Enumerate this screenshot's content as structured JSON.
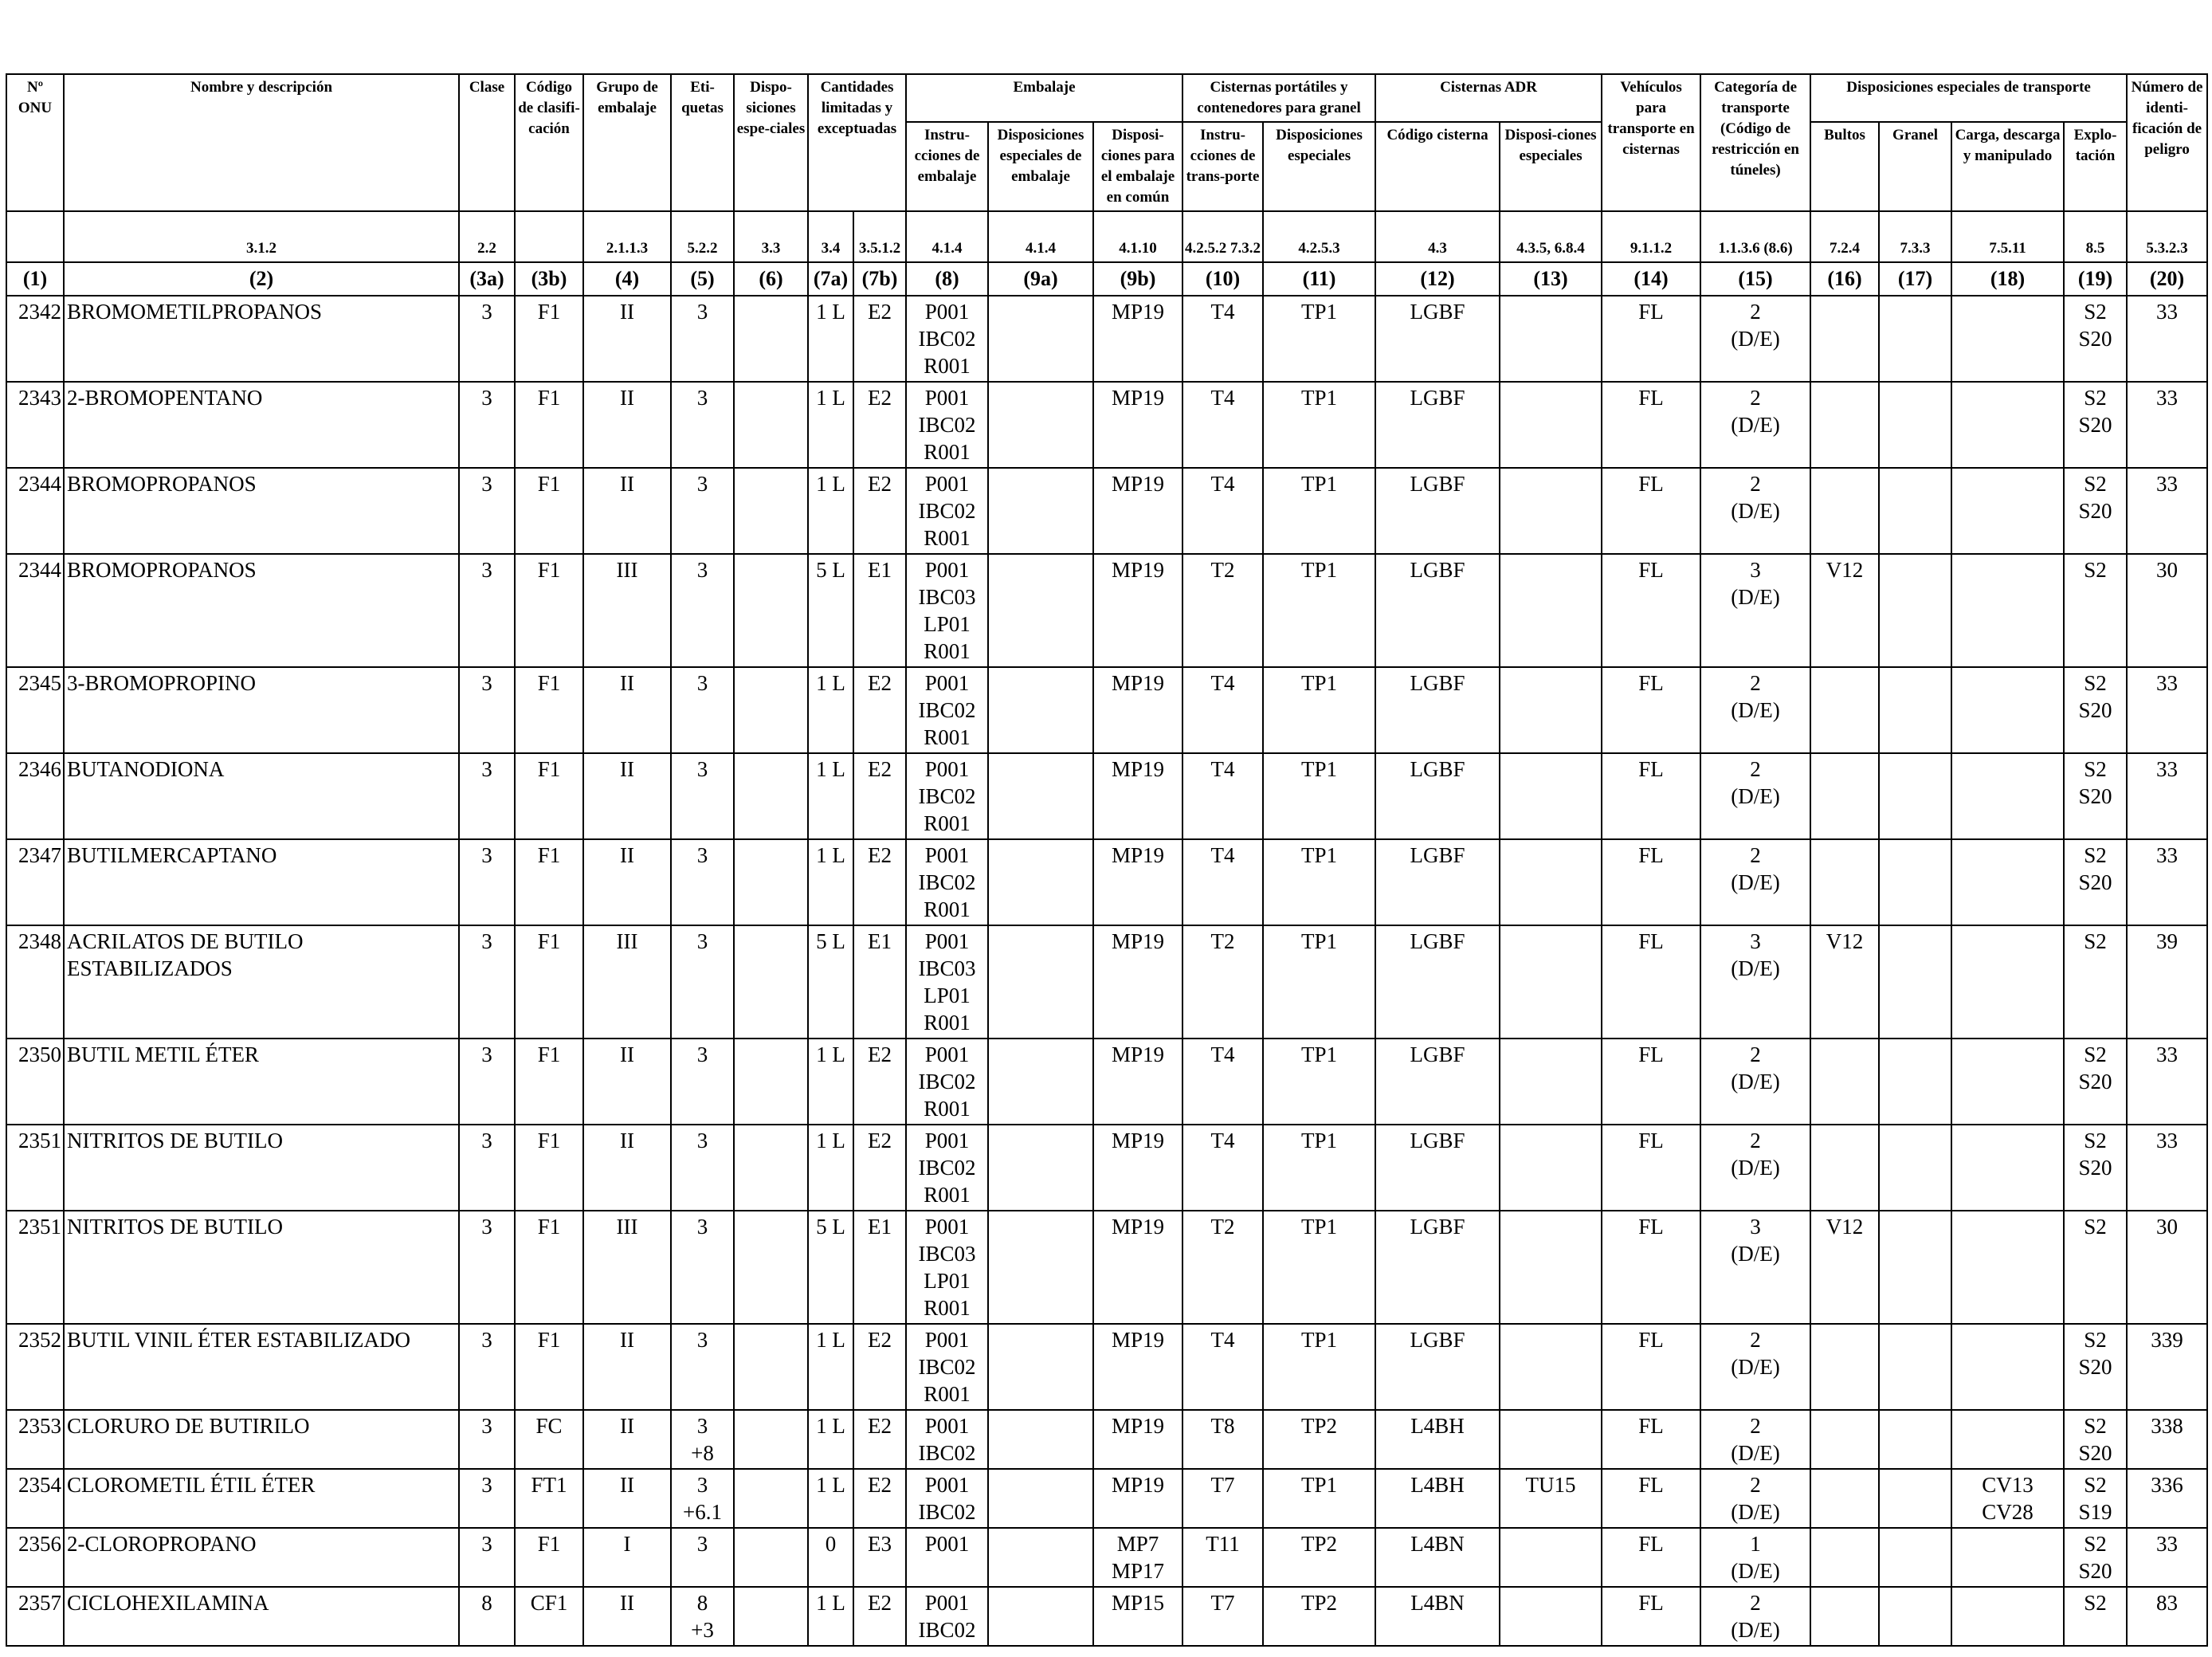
{
  "header": {
    "groups": {
      "cantidades": "Cantidades limitadas y exceptuadas",
      "embalaje": "Embalaje",
      "cisternas_portatiles": "Cisternas portátiles y contenedores para granel",
      "cisternas_adr": "Cisternas ADR",
      "disposiciones_transporte": "Disposiciones especiales de transporte"
    },
    "columns": [
      {
        "label": "Nº ONU",
        "ref": "",
        "num": "(1)"
      },
      {
        "label": "Nombre y descripción",
        "ref": "3.1.2",
        "num": "(2)"
      },
      {
        "label": "Clase",
        "ref": "2.2",
        "num": "(3a)"
      },
      {
        "label": "Código de clasifi-cación",
        "ref": "",
        "num": "(3b)"
      },
      {
        "label": "Grupo de embalaje",
        "ref": "2.1.1.3",
        "num": "(4)"
      },
      {
        "label": "Eti-quetas",
        "ref": "5.2.2",
        "num": "(5)"
      },
      {
        "label": "Dispo-siciones espe-ciales",
        "ref": "3.3",
        "num": "(6)"
      },
      {
        "label": "",
        "ref": "3.4",
        "num": "(7a)"
      },
      {
        "label": "",
        "ref": "3.5.1.2",
        "num": "(7b)"
      },
      {
        "label": "Instru-cciones de embalaje",
        "ref": "4.1.4",
        "num": "(8)"
      },
      {
        "label": "Disposiciones especiales de embalaje",
        "ref": "4.1.4",
        "num": "(9a)"
      },
      {
        "label": "Disposi-ciones para el embalaje en común",
        "ref": "4.1.10",
        "num": "(9b)"
      },
      {
        "label": "Instru-cciones de trans-porte",
        "ref": "4.2.5.2 7.3.2",
        "num": "(10)"
      },
      {
        "label": "Disposiciones especiales",
        "ref": "4.2.5.3",
        "num": "(11)"
      },
      {
        "label": "Código cisterna",
        "ref": "4.3",
        "num": "(12)"
      },
      {
        "label": "Disposi-ciones especiales",
        "ref": "4.3.5, 6.8.4",
        "num": "(13)"
      },
      {
        "label": "Vehículos para transporte en cisternas",
        "ref": "9.1.1.2",
        "num": "(14)"
      },
      {
        "label": "Categoría de transporte (Código de restricción en túneles)",
        "ref": "1.1.3.6 (8.6)",
        "num": "(15)"
      },
      {
        "label": "Bultos",
        "ref": "7.2.4",
        "num": "(16)"
      },
      {
        "label": "Granel",
        "ref": "7.3.3",
        "num": "(17)"
      },
      {
        "label": "Carga, descarga y manipulado",
        "ref": "7.5.11",
        "num": "(18)"
      },
      {
        "label": "Explo-tación",
        "ref": "8.5",
        "num": "(19)"
      },
      {
        "label": "Número de identi-ficación de peligro",
        "ref": "5.3.2.3",
        "num": "(20)"
      }
    ]
  },
  "rows": [
    {
      "c": [
        "2342",
        "BROMOMETILPROPANOS",
        "3",
        "F1",
        "II",
        "3",
        "",
        "1 L",
        "E2",
        "P001\nIBC02\nR001",
        "",
        "MP19",
        "T4",
        "TP1",
        "LGBF",
        "",
        "FL",
        "2\n(D/E)",
        "",
        "",
        "",
        "S2\nS20",
        "33"
      ]
    },
    {
      "c": [
        "2343",
        "2-BROMOPENTANO",
        "3",
        "F1",
        "II",
        "3",
        "",
        "1 L",
        "E2",
        "P001\nIBC02\nR001",
        "",
        "MP19",
        "T4",
        "TP1",
        "LGBF",
        "",
        "FL",
        "2\n(D/E)",
        "",
        "",
        "",
        "S2\nS20",
        "33"
      ]
    },
    {
      "c": [
        "2344",
        "BROMOPROPANOS",
        "3",
        "F1",
        "II",
        "3",
        "",
        "1 L",
        "E2",
        "P001\nIBC02\nR001",
        "",
        "MP19",
        "T4",
        "TP1",
        "LGBF",
        "",
        "FL",
        "2\n(D/E)",
        "",
        "",
        "",
        "S2\nS20",
        "33"
      ]
    },
    {
      "c": [
        "2344",
        "BROMOPROPANOS",
        "3",
        "F1",
        "III",
        "3",
        "",
        "5 L",
        "E1",
        "P001\nIBC03\nLP01\nR001",
        "",
        "MP19",
        "T2",
        "TP1",
        "LGBF",
        "",
        "FL",
        "3\n(D/E)",
        "V12",
        "",
        "",
        "S2",
        "30"
      ]
    },
    {
      "c": [
        "2345",
        "3-BROMOPROPINO",
        "3",
        "F1",
        "II",
        "3",
        "",
        "1 L",
        "E2",
        "P001\nIBC02\nR001",
        "",
        "MP19",
        "T4",
        "TP1",
        "LGBF",
        "",
        "FL",
        "2\n(D/E)",
        "",
        "",
        "",
        "S2\nS20",
        "33"
      ]
    },
    {
      "c": [
        "2346",
        "BUTANODIONA",
        "3",
        "F1",
        "II",
        "3",
        "",
        "1 L",
        "E2",
        "P001\nIBC02\nR001",
        "",
        "MP19",
        "T4",
        "TP1",
        "LGBF",
        "",
        "FL",
        "2\n(D/E)",
        "",
        "",
        "",
        "S2\nS20",
        "33"
      ]
    },
    {
      "c": [
        "2347",
        "BUTILMERCAPTANO",
        "3",
        "F1",
        "II",
        "3",
        "",
        "1 L",
        "E2",
        "P001\nIBC02\nR001",
        "",
        "MP19",
        "T4",
        "TP1",
        "LGBF",
        "",
        "FL",
        "2\n(D/E)",
        "",
        "",
        "",
        "S2\nS20",
        "33"
      ]
    },
    {
      "c": [
        "2348",
        "ACRILATOS DE BUTILO\nESTABILIZADOS",
        "3",
        "F1",
        "III",
        "3",
        "",
        "5 L",
        "E1",
        "P001\nIBC03\nLP01\nR001",
        "",
        "MP19",
        "T2",
        "TP1",
        "LGBF",
        "",
        "FL",
        "3\n(D/E)",
        "V12",
        "",
        "",
        "S2",
        "39"
      ]
    },
    {
      "c": [
        "2350",
        "BUTIL METIL ÉTER",
        "3",
        "F1",
        "II",
        "3",
        "",
        "1 L",
        "E2",
        "P001\nIBC02\nR001",
        "",
        "MP19",
        "T4",
        "TP1",
        "LGBF",
        "",
        "FL",
        "2\n(D/E)",
        "",
        "",
        "",
        "S2\nS20",
        "33"
      ]
    },
    {
      "c": [
        "2351",
        "NITRITOS DE BUTILO",
        "3",
        "F1",
        "II",
        "3",
        "",
        "1 L",
        "E2",
        "P001\nIBC02\nR001",
        "",
        "MP19",
        "T4",
        "TP1",
        "LGBF",
        "",
        "FL",
        "2\n(D/E)",
        "",
        "",
        "",
        "S2\nS20",
        "33"
      ]
    },
    {
      "c": [
        "2351",
        "NITRITOS DE BUTILO",
        "3",
        "F1",
        "III",
        "3",
        "",
        "5 L",
        "E1",
        "P001\nIBC03\nLP01\nR001",
        "",
        "MP19",
        "T2",
        "TP1",
        "LGBF",
        "",
        "FL",
        "3\n(D/E)",
        "V12",
        "",
        "",
        "S2",
        "30"
      ]
    },
    {
      "c": [
        "2352",
        "BUTIL VINIL ÉTER ESTABILIZADO",
        "3",
        "F1",
        "II",
        "3",
        "",
        "1 L",
        "E2",
        "P001\nIBC02\nR001",
        "",
        "MP19",
        "T4",
        "TP1",
        "LGBF",
        "",
        "FL",
        "2\n(D/E)",
        "",
        "",
        "",
        "S2\nS20",
        "339"
      ]
    },
    {
      "c": [
        "2353",
        "CLORURO DE BUTIRILO",
        "3",
        "FC",
        "II",
        "3\n+8",
        "",
        "1 L",
        "E2",
        "P001\nIBC02",
        "",
        "MP19",
        "T8",
        "TP2",
        "L4BH",
        "",
        "FL",
        "2\n(D/E)",
        "",
        "",
        "",
        "S2\nS20",
        "338"
      ]
    },
    {
      "c": [
        "2354",
        "CLOROMETIL ÉTIL ÉTER",
        "3",
        "FT1",
        "II",
        "3\n+6.1",
        "",
        "1 L",
        "E2",
        "P001\nIBC02",
        "",
        "MP19",
        "T7",
        "TP1",
        "L4BH",
        "TU15",
        "FL",
        "2\n(D/E)",
        "",
        "",
        "CV13\nCV28",
        "S2\nS19",
        "336"
      ]
    },
    {
      "c": [
        "2356",
        "2-CLOROPROPANO",
        "3",
        "F1",
        "I",
        "3",
        "",
        "0",
        "E3",
        "P001",
        "",
        "MP7\nMP17",
        "T11",
        "TP2",
        "L4BN",
        "",
        "FL",
        "1\n(D/E)",
        "",
        "",
        "",
        "S2\nS20",
        "33"
      ]
    },
    {
      "c": [
        "2357",
        "CICLOHEXILAMINA",
        "8",
        "CF1",
        "II",
        "8\n+3",
        "",
        "1 L",
        "E2",
        "P001\nIBC02",
        "",
        "MP15",
        "T7",
        "TP2",
        "L4BN",
        "",
        "FL",
        "2\n(D/E)",
        "",
        "",
        "",
        "S2",
        "83"
      ]
    }
  ]
}
